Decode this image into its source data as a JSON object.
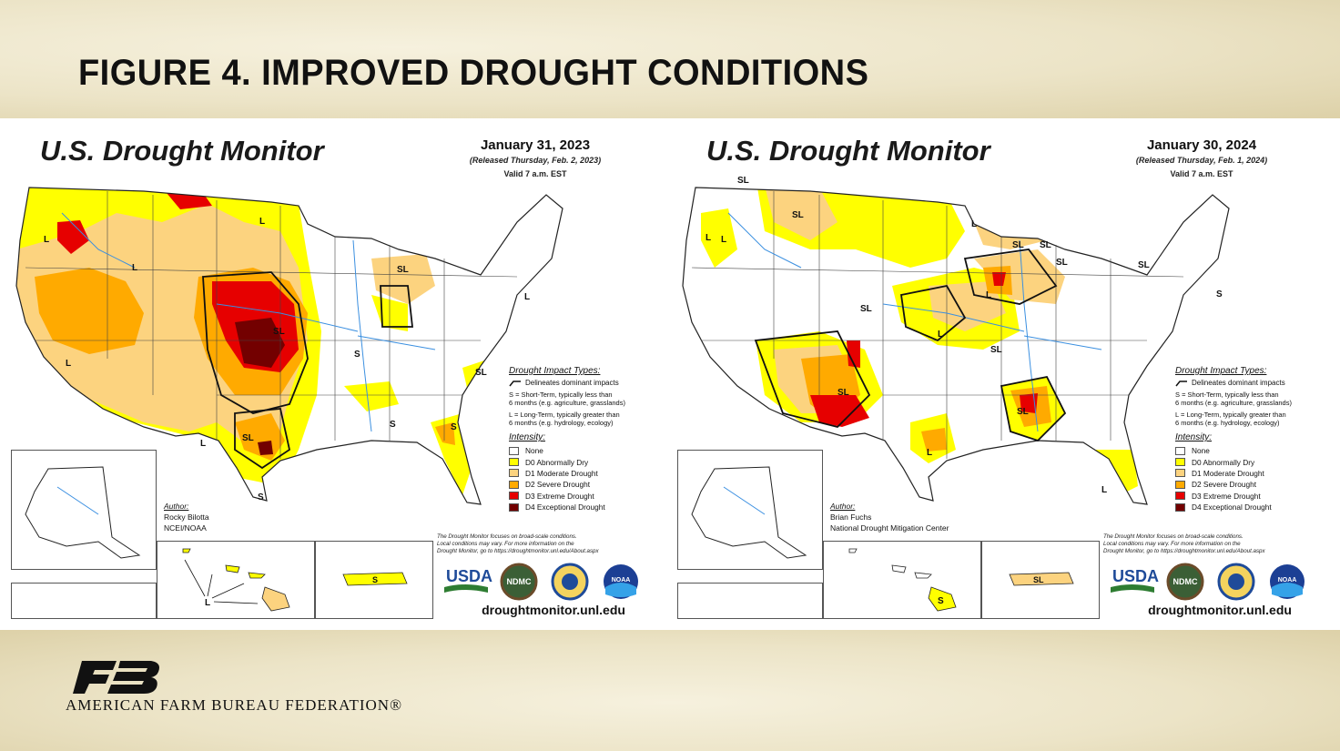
{
  "slide": {
    "title": "FIGURE 4. IMPROVED DROUGHT CONDITIONS",
    "organization": "AMERICAN FARM BUREAU FEDERATION®"
  },
  "colors": {
    "none": "#ffffff",
    "d0": "#ffff00",
    "d1": "#fcd37f",
    "d2": "#ffaa00",
    "d3": "#e60000",
    "d4": "#730000"
  },
  "maps": [
    {
      "title": "U.S. Drought Monitor",
      "date": "January 31, 2023",
      "released": "(Released Thursday, Feb. 2, 2023)",
      "valid": "Valid 7 a.m. EST",
      "author_heading": "Author:",
      "author_name": "Rocky Bilotta",
      "author_org": "NCEI/NOAA",
      "labels": {
        "west_nw": "L",
        "ne_mt": "L",
        "ca_s": "L",
        "ut": "L",
        "ks": "SL",
        "tx": "SL",
        "tx_s": "S",
        "az": "L",
        "mi": "SL",
        "ny": "L",
        "va": "S",
        "nc": "SL",
        "ga": "S",
        "fl": "S",
        "hi": "L",
        "pr": "S"
      }
    },
    {
      "title": "U.S. Drought Monitor",
      "date": "January 30, 2024",
      "released": "(Released Thursday, Feb. 1, 2024)",
      "valid": "Valid 7 a.m. EST",
      "author_heading": "Author:",
      "author_name": "Brian Fuchs",
      "author_org": "National Drought Mitigation Center",
      "labels": {
        "wa": "SL",
        "wa2": "L",
        "or": "L",
        "mt": "SL",
        "mn": "L",
        "wi": "SL",
        "mi": "SL",
        "mi2": "SL",
        "ne": "SL",
        "ia": "L",
        "mo": "L",
        "ky": "SL",
        "nm": "SL",
        "ms": "SL",
        "tx": "L",
        "fl": "L",
        "ny": "SL",
        "me": "S",
        "hi": "S",
        "pr": "SL"
      }
    }
  ],
  "legend": {
    "impact_heading": "Drought Impact Types:",
    "delineates": "Delineates dominant impacts",
    "short_term_1": "S = Short-Term, typically less than",
    "short_term_2": "6 months (e.g. agriculture, grasslands)",
    "long_term_1": "L = Long-Term, typically greater than",
    "long_term_2": "6 months (e.g. hydrology, ecology)",
    "intensity_heading": "Intensity:",
    "levels": [
      "None",
      "D0 Abnormally Dry",
      "D1 Moderate Drought",
      "D2 Severe Drought",
      "D3 Extreme Drought",
      "D4 Exceptional Drought"
    ]
  },
  "footnote": {
    "line1": "The Drought Monitor focuses on broad-scale conditions.",
    "line2": "Local conditions may vary. For more information on the",
    "line3": "Drought Monitor, go to https://droughtmonitor.unl.edu/About.aspx"
  },
  "logos": {
    "usda": "USDA",
    "ndmc": "NDMC",
    "noaa": "NOAA"
  },
  "url": "droughtmonitor.unl.edu"
}
